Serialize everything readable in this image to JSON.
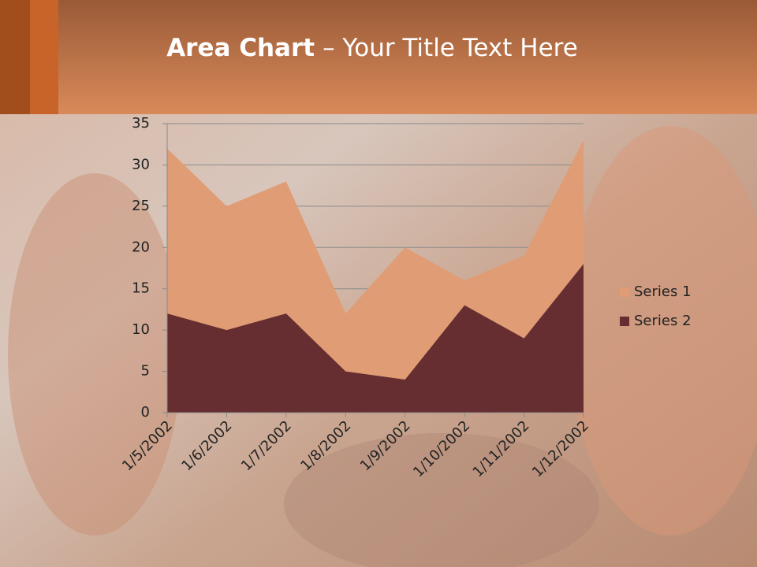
{
  "chart_data": {
    "type": "area",
    "title": [
      "Area Chart",
      "– Your Title Text Here"
    ],
    "categories": [
      "1/5/2002",
      "1/6/2002",
      "1/7/2002",
      "1/8/2002",
      "1/9/2002",
      "1/10/2002",
      "1/11/2002",
      "1/12/2002"
    ],
    "series": [
      {
        "name": "Series 1",
        "color": "#e09c74",
        "values": [
          32,
          25,
          28,
          12,
          20,
          16,
          19,
          33
        ]
      },
      {
        "name": "Series 2",
        "color": "#662e30",
        "values": [
          12,
          10,
          12,
          5,
          4,
          13,
          9,
          18
        ]
      }
    ],
    "ylim": [
      0,
      35
    ],
    "yticks": [
      0,
      5,
      10,
      15,
      20,
      25,
      30,
      35
    ],
    "grid": true,
    "legend": "right"
  }
}
